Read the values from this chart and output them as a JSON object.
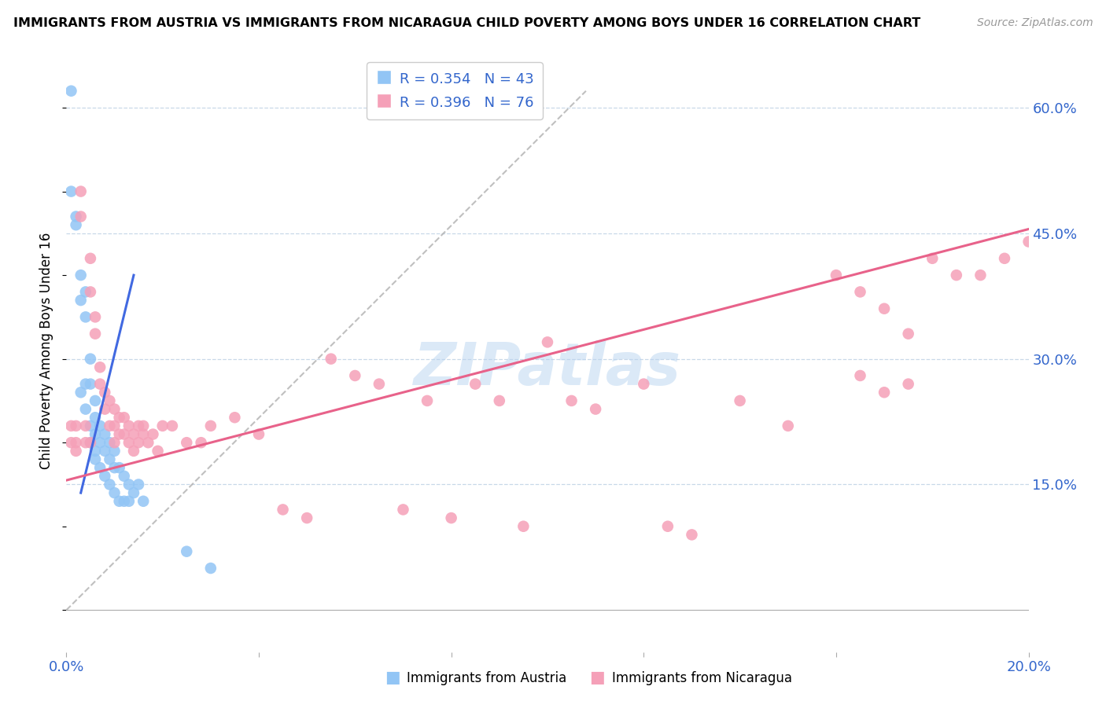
{
  "title": "IMMIGRANTS FROM AUSTRIA VS IMMIGRANTS FROM NICARAGUA CHILD POVERTY AMONG BOYS UNDER 16 CORRELATION CHART",
  "source": "Source: ZipAtlas.com",
  "ylabel": "Child Poverty Among Boys Under 16",
  "xlim": [
    0.0,
    0.2
  ],
  "ylim": [
    -0.05,
    0.67
  ],
  "yticks": [
    0.0,
    0.15,
    0.3,
    0.45,
    0.6
  ],
  "ytick_labels": [
    "",
    "15.0%",
    "30.0%",
    "45.0%",
    "60.0%"
  ],
  "xticks": [
    0.0,
    0.04,
    0.08,
    0.12,
    0.16,
    0.2
  ],
  "xtick_labels": [
    "0.0%",
    "",
    "",
    "",
    "",
    "20.0%"
  ],
  "austria_color": "#92c5f5",
  "nicaragua_color": "#f5a0b8",
  "austria_line_color": "#4169E1",
  "nicaragua_line_color": "#E8628A",
  "dashed_line_color": "#b0b0b0",
  "r_austria": 0.354,
  "n_austria": 43,
  "r_nicaragua": 0.396,
  "n_nicaragua": 76,
  "watermark": "ZIPatlas",
  "austria_scatter_x": [
    0.001,
    0.001,
    0.002,
    0.002,
    0.003,
    0.003,
    0.003,
    0.004,
    0.004,
    0.004,
    0.004,
    0.005,
    0.005,
    0.005,
    0.005,
    0.006,
    0.006,
    0.006,
    0.006,
    0.006,
    0.007,
    0.007,
    0.007,
    0.008,
    0.008,
    0.008,
    0.009,
    0.009,
    0.009,
    0.01,
    0.01,
    0.01,
    0.011,
    0.011,
    0.012,
    0.012,
    0.013,
    0.013,
    0.014,
    0.015,
    0.016,
    0.025,
    0.03
  ],
  "austria_scatter_y": [
    0.62,
    0.5,
    0.47,
    0.46,
    0.4,
    0.37,
    0.26,
    0.38,
    0.35,
    0.27,
    0.24,
    0.3,
    0.27,
    0.22,
    0.2,
    0.25,
    0.23,
    0.21,
    0.19,
    0.18,
    0.22,
    0.2,
    0.17,
    0.21,
    0.19,
    0.16,
    0.2,
    0.18,
    0.15,
    0.19,
    0.17,
    0.14,
    0.17,
    0.13,
    0.16,
    0.13,
    0.15,
    0.13,
    0.14,
    0.15,
    0.13,
    0.07,
    0.05
  ],
  "austria_line_x": [
    0.003,
    0.014
  ],
  "austria_line_y": [
    0.14,
    0.4
  ],
  "nicaragua_scatter_x": [
    0.001,
    0.001,
    0.002,
    0.002,
    0.002,
    0.003,
    0.003,
    0.004,
    0.004,
    0.005,
    0.005,
    0.005,
    0.006,
    0.006,
    0.007,
    0.007,
    0.008,
    0.008,
    0.009,
    0.009,
    0.01,
    0.01,
    0.01,
    0.011,
    0.011,
    0.012,
    0.012,
    0.013,
    0.013,
    0.014,
    0.014,
    0.015,
    0.015,
    0.016,
    0.016,
    0.017,
    0.018,
    0.019,
    0.02,
    0.022,
    0.025,
    0.028,
    0.03,
    0.035,
    0.04,
    0.045,
    0.05,
    0.055,
    0.06,
    0.065,
    0.07,
    0.075,
    0.08,
    0.085,
    0.09,
    0.095,
    0.1,
    0.105,
    0.11,
    0.12,
    0.125,
    0.13,
    0.14,
    0.15,
    0.16,
    0.165,
    0.17,
    0.175,
    0.18,
    0.185,
    0.19,
    0.195,
    0.2,
    0.165,
    0.17,
    0.175
  ],
  "nicaragua_scatter_y": [
    0.22,
    0.2,
    0.22,
    0.2,
    0.19,
    0.5,
    0.47,
    0.22,
    0.2,
    0.42,
    0.38,
    0.2,
    0.35,
    0.33,
    0.29,
    0.27,
    0.26,
    0.24,
    0.25,
    0.22,
    0.24,
    0.22,
    0.2,
    0.23,
    0.21,
    0.23,
    0.21,
    0.22,
    0.2,
    0.21,
    0.19,
    0.22,
    0.2,
    0.22,
    0.21,
    0.2,
    0.21,
    0.19,
    0.22,
    0.22,
    0.2,
    0.2,
    0.22,
    0.23,
    0.21,
    0.12,
    0.11,
    0.3,
    0.28,
    0.27,
    0.12,
    0.25,
    0.11,
    0.27,
    0.25,
    0.1,
    0.32,
    0.25,
    0.24,
    0.27,
    0.1,
    0.09,
    0.25,
    0.22,
    0.4,
    0.38,
    0.36,
    0.33,
    0.42,
    0.4,
    0.4,
    0.42,
    0.44,
    0.28,
    0.26,
    0.27
  ],
  "nicaragua_line_x": [
    0.0,
    0.2
  ],
  "nicaragua_line_y": [
    0.155,
    0.455
  ],
  "dashed_line_x": [
    0.0,
    0.108
  ],
  "dashed_line_y": [
    0.0,
    0.62
  ]
}
